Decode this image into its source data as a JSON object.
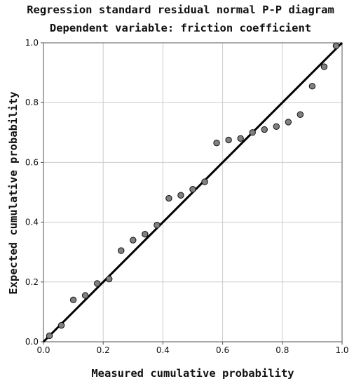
{
  "chart_data": {
    "type": "scatter",
    "title": "Regression standard residual normal P-P diagram",
    "subtitle": "Dependent variable: friction coefficient",
    "xlabel": "Measured cumulative probability",
    "ylabel": "Expected cumulative probability",
    "xlim": [
      0,
      1
    ],
    "ylim": [
      0,
      1
    ],
    "xticks": [
      "0.0",
      "0.2",
      "0.4",
      "0.6",
      "0.8",
      "1.0"
    ],
    "yticks": [
      "0.0",
      "0.2",
      "0.4",
      "0.6",
      "0.8",
      "1.0"
    ],
    "grid": true,
    "legend": "none",
    "reference_line": {
      "x": [
        0,
        1
      ],
      "y": [
        0,
        1
      ]
    },
    "colors": {
      "point_fill": "#808080",
      "point_stroke": "#111111",
      "line": "#000000",
      "grid": "#cccccc",
      "frame": "#555555"
    },
    "points": [
      {
        "x": 0.02,
        "y": 0.02
      },
      {
        "x": 0.06,
        "y": 0.055
      },
      {
        "x": 0.1,
        "y": 0.14
      },
      {
        "x": 0.14,
        "y": 0.155
      },
      {
        "x": 0.18,
        "y": 0.195
      },
      {
        "x": 0.22,
        "y": 0.21
      },
      {
        "x": 0.26,
        "y": 0.305
      },
      {
        "x": 0.3,
        "y": 0.34
      },
      {
        "x": 0.34,
        "y": 0.36
      },
      {
        "x": 0.38,
        "y": 0.39
      },
      {
        "x": 0.42,
        "y": 0.48
      },
      {
        "x": 0.46,
        "y": 0.49
      },
      {
        "x": 0.5,
        "y": 0.51
      },
      {
        "x": 0.54,
        "y": 0.535
      },
      {
        "x": 0.58,
        "y": 0.665
      },
      {
        "x": 0.62,
        "y": 0.675
      },
      {
        "x": 0.66,
        "y": 0.68
      },
      {
        "x": 0.7,
        "y": 0.7
      },
      {
        "x": 0.74,
        "y": 0.71
      },
      {
        "x": 0.78,
        "y": 0.72
      },
      {
        "x": 0.82,
        "y": 0.735
      },
      {
        "x": 0.86,
        "y": 0.76
      },
      {
        "x": 0.9,
        "y": 0.855
      },
      {
        "x": 0.94,
        "y": 0.92
      },
      {
        "x": 0.98,
        "y": 0.99
      }
    ]
  }
}
